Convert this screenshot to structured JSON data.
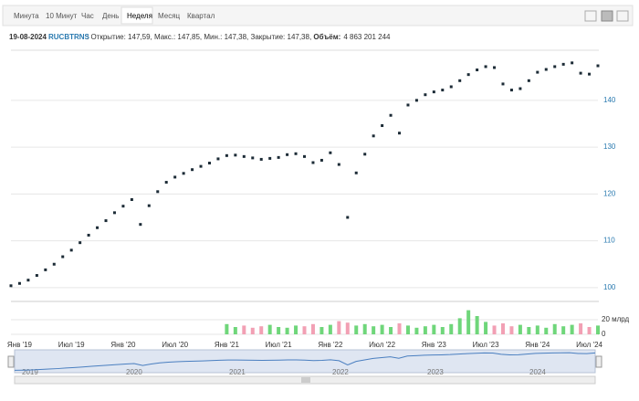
{
  "toolbar": {
    "tabs": [
      "Минута",
      "10 Минут",
      "Час",
      "День",
      "Неделя",
      "Месяц",
      "Квартал"
    ],
    "active": 4
  },
  "info": {
    "date": "19-08-2024",
    "ticker": "RUCBTRNS",
    "text": " : Открытие: 147,59, Макс.: 147,85, Мин.: 147,38, Закрытие: 147,38, ",
    "volume_label": "Объём:",
    "volume_value": "4 863 201 244"
  },
  "chart_data": {
    "type": "price-volume",
    "categories": [
      null,
      "Янв '19",
      null,
      null,
      null,
      null,
      null,
      "Июл '19",
      null,
      null,
      null,
      null,
      null,
      "Янв '20",
      null,
      null,
      null,
      null,
      null,
      "Июл '20",
      null,
      null,
      null,
      null,
      null,
      "Янв '21",
      null,
      null,
      null,
      null,
      null,
      "Июл '21",
      null,
      null,
      null,
      null,
      null,
      "Янв '22",
      null,
      null,
      null,
      null,
      null,
      "Июл '22",
      null,
      null,
      null,
      null,
      null,
      "Янв '23",
      null,
      null,
      null,
      null,
      null,
      "Июл '23",
      null,
      null,
      null,
      null,
      null,
      "Янв '24",
      null,
      null,
      null,
      null,
      null,
      "Июл '24",
      null
    ],
    "series": [
      {
        "name": "RUCBTRNS",
        "color": "#1c2b36",
        "values": [
          100.4,
          100.9,
          101.6,
          102.6,
          103.8,
          105.0,
          106.6,
          108.0,
          109.6,
          111.2,
          112.8,
          114.3,
          116.0,
          117.4,
          118.8,
          113.5,
          117.5,
          120.5,
          122.5,
          123.6,
          124.4,
          125.2,
          125.9,
          126.6,
          127.5,
          128.2,
          128.3,
          128.0,
          127.7,
          127.4,
          127.6,
          127.8,
          128.4,
          128.6,
          128.0,
          126.7,
          127.2,
          128.8,
          126.3,
          115.0,
          124.5,
          128.5,
          132.4,
          134.6,
          136.8,
          133.0,
          139.0,
          140.0,
          141.2,
          141.8,
          142.2,
          142.9,
          144.2,
          145.5,
          146.5,
          147.2,
          147.0,
          143.5,
          142.2,
          142.5,
          144.2,
          146.0,
          146.6,
          147.2,
          147.7,
          148.0,
          145.8,
          145.6,
          147.38
        ]
      },
      {
        "name": "Объём",
        "up_color": "#6fd67a",
        "down_color": "#f2a0b4",
        "values": [
          null,
          null,
          null,
          null,
          null,
          null,
          null,
          null,
          null,
          null,
          null,
          null,
          null,
          null,
          null,
          null,
          null,
          null,
          null,
          null,
          null,
          null,
          null,
          null,
          null,
          14,
          10,
          12,
          9,
          11,
          13,
          10,
          9,
          12,
          11,
          14,
          10,
          13,
          18,
          16,
          12,
          14,
          11,
          13,
          10,
          15,
          12,
          9,
          11,
          13,
          10,
          14,
          22,
          33,
          25,
          17,
          12,
          15,
          11,
          13,
          10,
          12,
          9,
          14,
          11,
          13,
          15,
          10,
          12
        ]
      }
    ],
    "ylim": [
      99,
      150.7
    ],
    "yticks": [
      100,
      110,
      120,
      130,
      140
    ],
    "vlim": [
      0,
      45
    ],
    "vticks": [
      0,
      {
        "value": 20,
        "label": "20 млрд"
      }
    ],
    "grid": true,
    "navigator_labels": [
      "2019",
      "2020",
      "2021",
      "2022",
      "2023",
      "2024"
    ]
  }
}
